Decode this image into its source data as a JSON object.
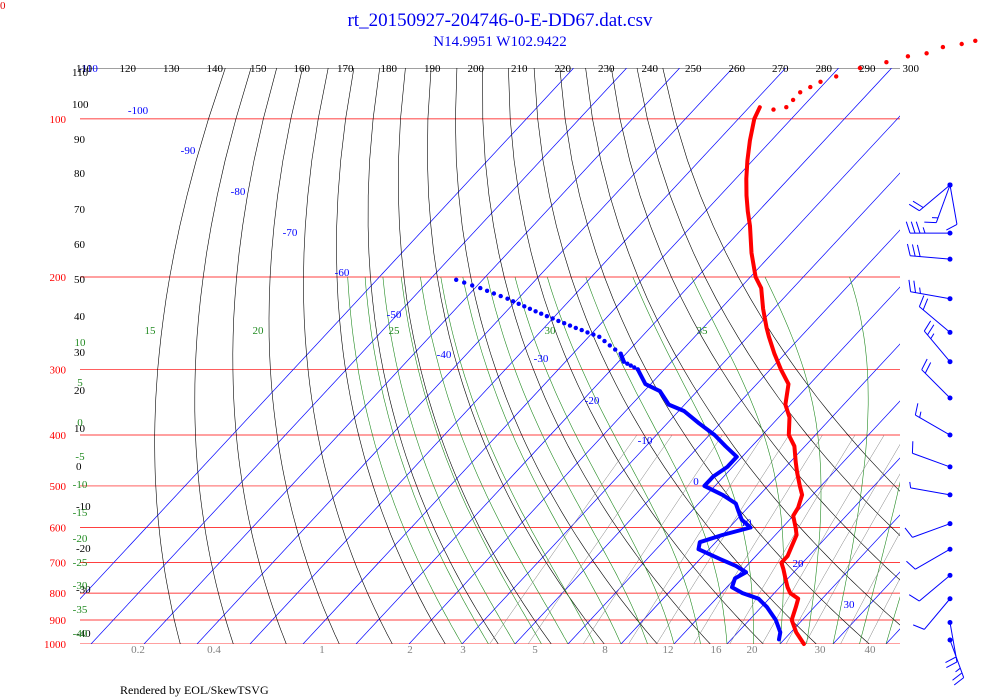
{
  "header": {
    "title": "rt_20150927-204746-0-E-DD67.dat.csv",
    "subtitle": "N14.9951 W102.9422",
    "corner_label": "0",
    "credit": "Rendered by EOL/SkewTSVG"
  },
  "chart_data": {
    "type": "skew-t",
    "colors": {
      "temperature": "#ff0000",
      "dewpoint": "#0000ff",
      "isobar": "#ff0000",
      "isotherm": "#0000ff",
      "dry_adiabat": "#000000",
      "moist_adiabat": "#228b22",
      "mixing_ratio": "#808080",
      "wind": "#0000ff"
    },
    "top_axis_ticks": [
      "110",
      "120",
      "130",
      "140",
      "150",
      "160",
      "170",
      "180",
      "190",
      "200",
      "210",
      "220",
      "230",
      "240",
      "250",
      "260",
      "270",
      "280",
      "290",
      "300"
    ],
    "pressure_levels": [
      "100",
      "200",
      "300",
      "400",
      "500",
      "600",
      "700",
      "800",
      "900",
      "1000"
    ],
    "isotherm_labels": [
      "-110",
      "-100",
      "-90",
      "-80",
      "-70",
      "-60",
      "-50",
      "-40",
      "-30",
      "-20",
      "-10",
      "0",
      "10",
      "20",
      "30"
    ],
    "dry_adiabat_labels": [
      "110",
      "100",
      "90",
      "80",
      "70",
      "60",
      "50",
      "40",
      "30",
      "20",
      "10",
      "0",
      "-10",
      "-20",
      "-30",
      "-40"
    ],
    "moist_adiabat_labels": [
      "15",
      "20",
      "25",
      "30",
      "35",
      "10",
      "5",
      "0",
      "-5",
      "-10",
      "-15",
      "-20",
      "-25",
      "-30",
      "-35",
      "-40"
    ],
    "mixing_ratio_labels": [
      "0.2",
      "0.4",
      "1",
      "2",
      "3",
      "5",
      "8",
      "12",
      "16",
      "20",
      "30",
      "40"
    ],
    "temperature": [
      {
        "p": 1000,
        "t": 24.5
      },
      {
        "p": 950,
        "t": 21
      },
      {
        "p": 900,
        "t": 18
      },
      {
        "p": 850,
        "t": 16.5
      },
      {
        "p": 820,
        "t": 15.5
      },
      {
        "p": 800,
        "t": 13
      },
      {
        "p": 780,
        "t": 11.5
      },
      {
        "p": 750,
        "t": 9.5
      },
      {
        "p": 720,
        "t": 7.5
      },
      {
        "p": 700,
        "t": 6
      },
      {
        "p": 680,
        "t": 6
      },
      {
        "p": 650,
        "t": 5
      },
      {
        "p": 620,
        "t": 4
      },
      {
        "p": 600,
        "t": 2.5
      },
      {
        "p": 570,
        "t": 0
      },
      {
        "p": 550,
        "t": -0.5
      },
      {
        "p": 520,
        "t": -2
      },
      {
        "p": 500,
        "t": -4
      },
      {
        "p": 470,
        "t": -7
      },
      {
        "p": 450,
        "t": -9
      },
      {
        "p": 420,
        "t": -12
      },
      {
        "p": 400,
        "t": -15
      },
      {
        "p": 370,
        "t": -18
      },
      {
        "p": 350,
        "t": -21
      },
      {
        "p": 320,
        "t": -24
      },
      {
        "p": 300,
        "t": -28
      },
      {
        "p": 280,
        "t": -32
      },
      {
        "p": 260,
        "t": -36
      },
      {
        "p": 250,
        "t": -38
      },
      {
        "p": 230,
        "t": -42
      },
      {
        "p": 210,
        "t": -46
      },
      {
        "p": 200,
        "t": -49
      },
      {
        "p": 180,
        "t": -54
      },
      {
        "p": 160,
        "t": -59
      },
      {
        "p": 150,
        "t": -62
      },
      {
        "p": 140,
        "t": -65
      },
      {
        "p": 130,
        "t": -68
      },
      {
        "p": 120,
        "t": -71
      },
      {
        "p": 110,
        "t": -74
      },
      {
        "p": 100,
        "t": -77
      },
      {
        "p": 95,
        "t": -78
      }
    ],
    "temperature_upper": [
      {
        "p": 96,
        "t": -75
      },
      {
        "p": 95,
        "t": -73
      },
      {
        "p": 92,
        "t": -73
      },
      {
        "p": 89,
        "t": -73
      },
      {
        "p": 87,
        "t": -72
      },
      {
        "p": 85,
        "t": -71
      },
      {
        "p": 83,
        "t": -69
      },
      {
        "p": 80,
        "t": -66
      },
      {
        "p": 78,
        "t": -62
      },
      {
        "p": 76,
        "t": -59
      },
      {
        "p": 75,
        "t": -56
      },
      {
        "p": 73,
        "t": -54
      },
      {
        "p": 72,
        "t": -51
      },
      {
        "p": 71,
        "t": -49
      }
    ],
    "dewpoint": [
      {
        "p": 980,
        "t": 19
      },
      {
        "p": 950,
        "t": 18
      },
      {
        "p": 900,
        "t": 15
      },
      {
        "p": 850,
        "t": 11
      },
      {
        "p": 820,
        "t": 8
      },
      {
        "p": 800,
        "t": 4
      },
      {
        "p": 780,
        "t": 1
      },
      {
        "p": 750,
        "t": 0
      },
      {
        "p": 730,
        "t": 1
      },
      {
        "p": 710,
        "t": -2
      },
      {
        "p": 690,
        "t": -6
      },
      {
        "p": 660,
        "t": -12
      },
      {
        "p": 640,
        "t": -13
      },
      {
        "p": 620,
        "t": -10
      },
      {
        "p": 600,
        "t": -6
      },
      {
        "p": 580,
        "t": -9
      },
      {
        "p": 560,
        "t": -11
      },
      {
        "p": 540,
        "t": -13
      },
      {
        "p": 520,
        "t": -17
      },
      {
        "p": 500,
        "t": -22
      },
      {
        "p": 480,
        "t": -22
      },
      {
        "p": 460,
        "t": -21
      },
      {
        "p": 440,
        "t": -21
      },
      {
        "p": 420,
        "t": -25
      },
      {
        "p": 400,
        "t": -29
      },
      {
        "p": 380,
        "t": -34
      },
      {
        "p": 360,
        "t": -39
      },
      {
        "p": 350,
        "t": -43
      },
      {
        "p": 330,
        "t": -47
      },
      {
        "p": 320,
        "t": -51
      },
      {
        "p": 300,
        "t": -55
      },
      {
        "p": 290,
        "t": -59
      },
      {
        "p": 280,
        "t": -61
      },
      {
        "p": 260,
        "t": -68
      },
      {
        "p": 250,
        "t": -74
      },
      {
        "p": 240,
        "t": -80
      },
      {
        "p": 230,
        "t": -86
      },
      {
        "p": 220,
        "t": -92
      },
      {
        "p": 210,
        "t": -99
      },
      {
        "p": 200,
        "t": -107
      }
    ],
    "wind_levels": [
      {
        "p": 60,
        "dir": 200,
        "spd": 15
      },
      {
        "p": 75,
        "dir": 170,
        "spd": 10
      },
      {
        "p": 95,
        "dir": 230,
        "spd": 20
      },
      {
        "p": 120,
        "dir": 0,
        "spd": 0
      },
      {
        "p": 165,
        "dir": 270,
        "spd": 35
      },
      {
        "p": 185,
        "dir": 275,
        "spd": 30
      },
      {
        "p": 220,
        "dir": 280,
        "spd": 25
      },
      {
        "p": 255,
        "dir": 310,
        "spd": 20
      },
      {
        "p": 290,
        "dir": 320,
        "spd": 25
      },
      {
        "p": 340,
        "dir": 315,
        "spd": 20
      },
      {
        "p": 400,
        "dir": 300,
        "spd": 15
      },
      {
        "p": 460,
        "dir": 290,
        "spd": 10
      },
      {
        "p": 520,
        "dir": 280,
        "spd": 5
      },
      {
        "p": 590,
        "dir": 250,
        "spd": 10
      },
      {
        "p": 660,
        "dir": 240,
        "spd": 10
      },
      {
        "p": 740,
        "dir": 230,
        "spd": 10
      },
      {
        "p": 820,
        "dir": 220,
        "spd": 10
      },
      {
        "p": 910,
        "dir": 170,
        "spd": 20
      },
      {
        "p": 990,
        "dir": 160,
        "spd": 25
      }
    ]
  }
}
